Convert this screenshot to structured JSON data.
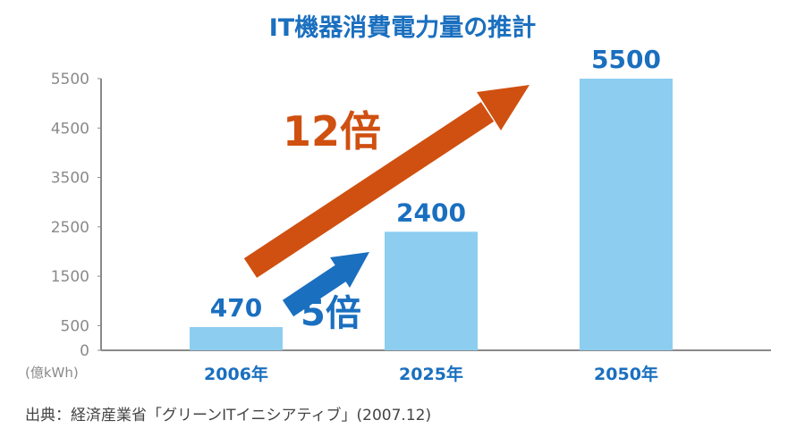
{
  "chart_data": {
    "type": "bar",
    "title": "IT機器消費電力量の推計",
    "unit_label": "(億kWh)",
    "categories": [
      "2006年",
      "2025年",
      "2050年"
    ],
    "values": [
      470,
      2400,
      5500
    ],
    "data_labels": [
      "470",
      "2400",
      "5500"
    ],
    "y_ticks": [
      "0",
      "500",
      "1500",
      "2500",
      "3500",
      "4500",
      "5500"
    ],
    "ylim": [
      0,
      5500
    ],
    "grid": false,
    "annotations": [
      {
        "text": "12倍",
        "from": "2006年",
        "to": "2050年",
        "color": "#cf5010"
      },
      {
        "text": "5倍",
        "from": "2006年",
        "to": "2025年",
        "color": "#1a6fbf"
      }
    ],
    "source": "出典：経済産業省「グリーンITイニシアティブ」(2007.12)"
  },
  "colors": {
    "bar": "#8dcdf0",
    "label": "#1a6fbf",
    "arrow_12x": "#cf5010",
    "arrow_5x": "#1a6fbf",
    "axis": "#8a8a8a"
  }
}
